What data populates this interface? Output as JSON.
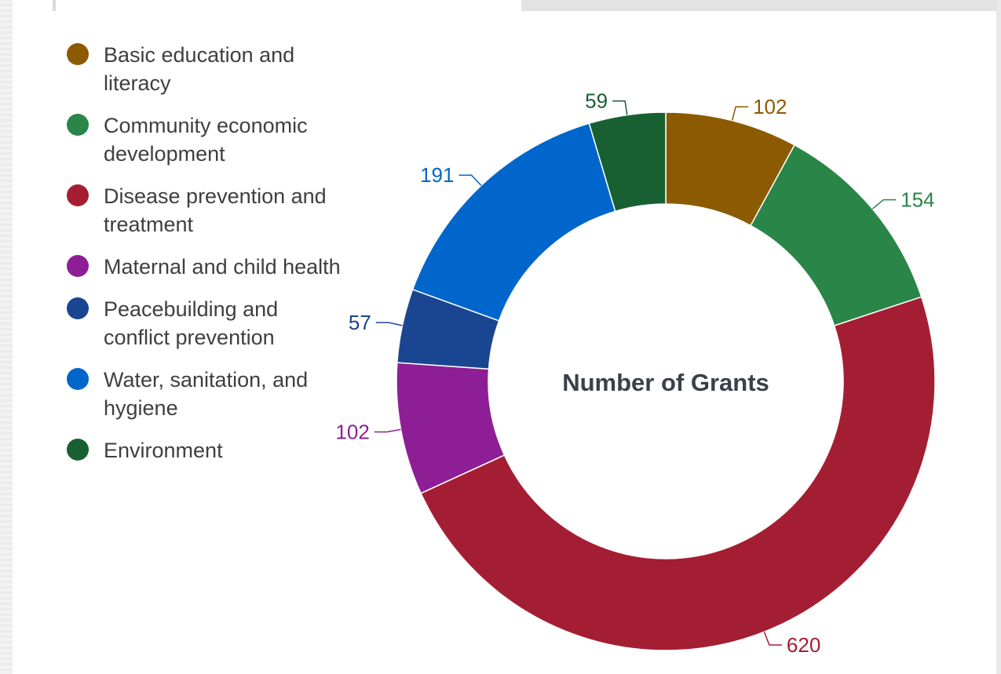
{
  "chart_data": {
    "type": "pie",
    "title": "",
    "center_label": "Number of Grants",
    "slices": [
      {
        "label": "Basic education and literacy",
        "value": 102,
        "color": "#8c5a00"
      },
      {
        "label": "Community economic development",
        "value": 154,
        "color": "#2a8548"
      },
      {
        "label": "Disease prevention and treatment",
        "value": 620,
        "color": "#a41e33"
      },
      {
        "label": "Maternal and child health",
        "value": 102,
        "color": "#8e1e96"
      },
      {
        "label": "Peacebuilding and conflict prevention",
        "value": 57,
        "color": "#1a4590"
      },
      {
        "label": "Water, sanitation, and hygiene",
        "value": 191,
        "color": "#0066cc"
      },
      {
        "label": "Environment",
        "value": 59,
        "color": "#186032"
      }
    ]
  }
}
